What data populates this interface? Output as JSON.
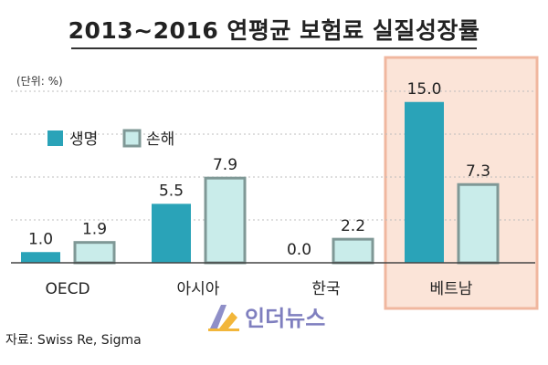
{
  "chart_data": {
    "type": "bar",
    "title": "2013~2016 연평균 보험료 실질성장률",
    "unit": "(단위: %)",
    "categories": [
      "OECD",
      "아시아",
      "한국",
      "베트남"
    ],
    "highlight_category": "베트남",
    "series": [
      {
        "name": "생명",
        "values": [
          1.0,
          5.5,
          0.0,
          15.0
        ],
        "value_labels": [
          "1.0",
          "5.5",
          "0.0",
          "15.0"
        ],
        "color": "#2aa3b8",
        "stroke": "#2aa3b8"
      },
      {
        "name": "손해",
        "values": [
          1.9,
          7.9,
          2.2,
          7.3
        ],
        "value_labels": [
          "1.9",
          "7.9",
          "2.2",
          "7.3"
        ],
        "color": "#c9ecea",
        "stroke": "#7f9896"
      }
    ],
    "ylim": [
      0,
      16
    ],
    "grid": true,
    "legend_position": "top-left",
    "highlight_color": "#fbe4d8",
    "highlight_border": "#f0b79f"
  },
  "source": "자료: Swiss Re, Sigma",
  "logo_text": "인더뉴스"
}
